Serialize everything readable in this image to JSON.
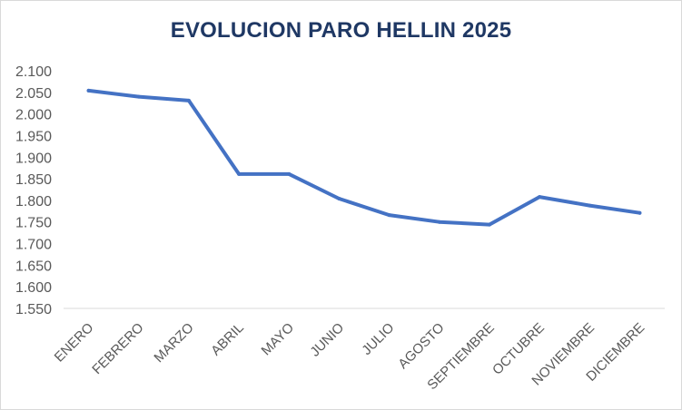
{
  "chart_data": {
    "type": "line",
    "title": "EVOLUCION PARO HELLIN 2025",
    "xlabel": "",
    "ylabel": "",
    "categories": [
      "ENERO",
      "FEBRERO",
      "MARZO",
      "ABRIL",
      "MAYO",
      "JUNIO",
      "JULIO",
      "AGOSTO",
      "SEPTIEMBRE",
      "OCTUBRE",
      "NOVIEMBRE",
      "DICIEMBRE"
    ],
    "series": [
      {
        "values": [
          2054,
          2040,
          2031,
          1861,
          1861,
          1804,
          1766,
          1750,
          1744,
          1808,
          1788,
          1771
        ]
      }
    ],
    "ylim": [
      1550,
      2100
    ],
    "yticks": [
      1550,
      1600,
      1650,
      1700,
      1750,
      1800,
      1850,
      1900,
      1950,
      2000,
      2050,
      2100
    ],
    "ytick_labels": [
      "1.550",
      "1.600",
      "1.650",
      "1.700",
      "1.750",
      "1.800",
      "1.850",
      "1.900",
      "1.950",
      "2.000",
      "2.050",
      "2.100"
    ],
    "grid": false,
    "legend": "none",
    "colors": {
      "line": "#4472c4",
      "title": "#1f3864",
      "axis": "#d9d9d9",
      "tick_text": "#595959"
    }
  }
}
